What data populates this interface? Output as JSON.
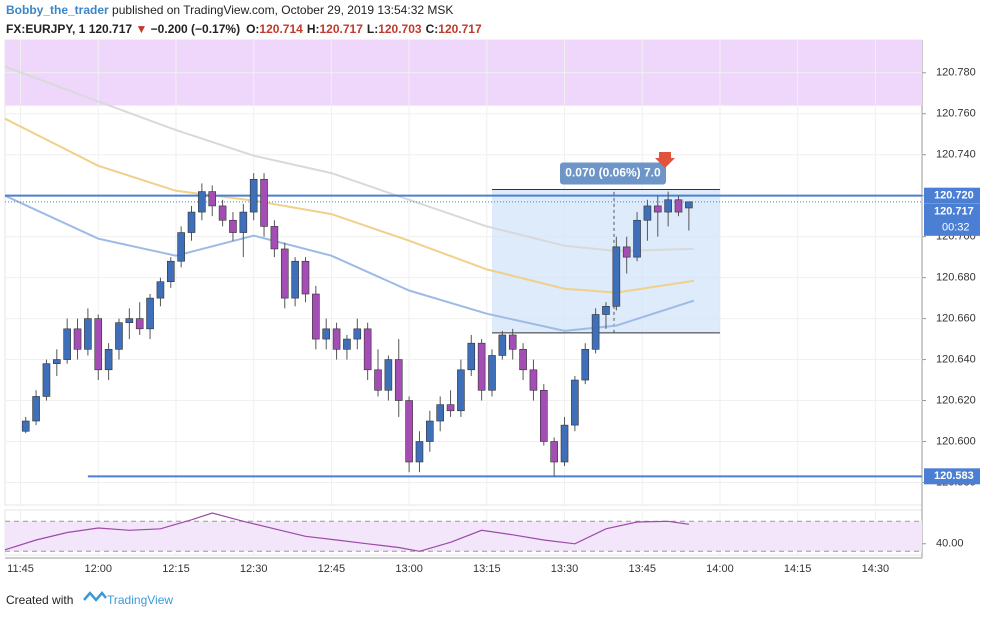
{
  "header": {
    "user": "Bobby_the_trader",
    "published": "published on TradingView.com, October 29, 2019 13:54:32 MSK",
    "symbol": "FX:EURJPY, 1",
    "last": "120.717",
    "arrow": "▼",
    "change": "−0.200 (−0.17%)",
    "ohlc": [
      {
        "key": "O:",
        "value": "120.714"
      },
      {
        "key": "H:",
        "value": "120.717"
      },
      {
        "key": "L:",
        "value": "120.703"
      },
      {
        "key": "C:",
        "value": "120.717"
      }
    ]
  },
  "footer": {
    "text": "Created with",
    "brand": "TradingView"
  },
  "chart_data": {
    "type": "candlestick",
    "xlim": [
      "11:42",
      "14:39"
    ],
    "ylim": [
      120.569,
      120.796
    ],
    "xticks": [
      "11:45",
      "12:00",
      "12:15",
      "12:30",
      "12:45",
      "13:00",
      "13:15",
      "13:30",
      "13:45",
      "14:00",
      "14:15",
      "14:30"
    ],
    "yticks": [
      {
        "value": 120.58,
        "label": "120.580"
      },
      {
        "value": 120.6,
        "label": "120.600"
      },
      {
        "value": 120.62,
        "label": "120.620"
      },
      {
        "value": 120.64,
        "label": "120.640"
      },
      {
        "value": 120.66,
        "label": "120.660"
      },
      {
        "value": 120.68,
        "label": "120.680"
      },
      {
        "value": 120.7,
        "label": "120.700"
      },
      {
        "value": 120.72,
        "label": "120.720"
      },
      {
        "value": 120.74,
        "label": "120.740"
      },
      {
        "value": 120.76,
        "label": "120.760"
      },
      {
        "value": 120.78,
        "label": "120.780"
      }
    ],
    "up_color": "#3f6fb8",
    "down_color": "#a34db5",
    "candles": [
      {
        "x": "11:46",
        "o": 120.605,
        "h": 120.612,
        "l": 120.604,
        "c": 120.61
      },
      {
        "x": "11:48",
        "o": 120.61,
        "h": 120.625,
        "l": 120.608,
        "c": 120.622
      },
      {
        "x": "11:50",
        "o": 120.622,
        "h": 120.64,
        "l": 120.62,
        "c": 120.638
      },
      {
        "x": "11:52",
        "o": 120.638,
        "h": 120.645,
        "l": 120.632,
        "c": 120.64
      },
      {
        "x": "11:54",
        "o": 120.64,
        "h": 120.66,
        "l": 120.638,
        "c": 120.655
      },
      {
        "x": "11:56",
        "o": 120.655,
        "h": 120.66,
        "l": 120.64,
        "c": 120.645
      },
      {
        "x": "11:58",
        "o": 120.645,
        "h": 120.665,
        "l": 120.642,
        "c": 120.66
      },
      {
        "x": "12:00",
        "o": 120.66,
        "h": 120.662,
        "l": 120.63,
        "c": 120.635
      },
      {
        "x": "12:02",
        "o": 120.635,
        "h": 120.648,
        "l": 120.63,
        "c": 120.645
      },
      {
        "x": "12:04",
        "o": 120.645,
        "h": 120.66,
        "l": 120.64,
        "c": 120.658
      },
      {
        "x": "12:06",
        "o": 120.658,
        "h": 120.665,
        "l": 120.65,
        "c": 120.66
      },
      {
        "x": "12:08",
        "o": 120.66,
        "h": 120.668,
        "l": 120.652,
        "c": 120.655
      },
      {
        "x": "12:10",
        "o": 120.655,
        "h": 120.672,
        "l": 120.65,
        "c": 120.67
      },
      {
        "x": "12:12",
        "o": 120.67,
        "h": 120.68,
        "l": 120.666,
        "c": 120.678
      },
      {
        "x": "12:14",
        "o": 120.678,
        "h": 120.69,
        "l": 120.675,
        "c": 120.688
      },
      {
        "x": "12:16",
        "o": 120.688,
        "h": 120.705,
        "l": 120.685,
        "c": 120.702
      },
      {
        "x": "12:18",
        "o": 120.702,
        "h": 120.715,
        "l": 120.698,
        "c": 120.712
      },
      {
        "x": "12:20",
        "o": 120.712,
        "h": 120.726,
        "l": 120.708,
        "c": 120.722
      },
      {
        "x": "12:22",
        "o": 120.722,
        "h": 120.725,
        "l": 120.71,
        "c": 120.715
      },
      {
        "x": "12:24",
        "o": 120.715,
        "h": 120.718,
        "l": 120.705,
        "c": 120.708
      },
      {
        "x": "12:26",
        "o": 120.708,
        "h": 120.712,
        "l": 120.698,
        "c": 120.702
      },
      {
        "x": "12:28",
        "o": 120.702,
        "h": 120.716,
        "l": 120.69,
        "c": 120.712
      },
      {
        "x": "12:30",
        "o": 120.712,
        "h": 120.731,
        "l": 120.708,
        "c": 120.728
      },
      {
        "x": "12:32",
        "o": 120.728,
        "h": 120.731,
        "l": 120.7,
        "c": 120.705
      },
      {
        "x": "12:34",
        "o": 120.705,
        "h": 120.708,
        "l": 120.69,
        "c": 120.694
      },
      {
        "x": "12:36",
        "o": 120.694,
        "h": 120.697,
        "l": 120.665,
        "c": 120.67
      },
      {
        "x": "12:38",
        "o": 120.67,
        "h": 120.69,
        "l": 120.666,
        "c": 120.688
      },
      {
        "x": "12:40",
        "o": 120.688,
        "h": 120.69,
        "l": 120.668,
        "c": 120.672
      },
      {
        "x": "12:42",
        "o": 120.672,
        "h": 120.676,
        "l": 120.645,
        "c": 120.65
      },
      {
        "x": "12:44",
        "o": 120.65,
        "h": 120.66,
        "l": 120.645,
        "c": 120.655
      },
      {
        "x": "12:46",
        "o": 120.655,
        "h": 120.658,
        "l": 120.64,
        "c": 120.645
      },
      {
        "x": "12:48",
        "o": 120.645,
        "h": 120.652,
        "l": 120.64,
        "c": 120.65
      },
      {
        "x": "12:50",
        "o": 120.65,
        "h": 120.66,
        "l": 120.645,
        "c": 120.655
      },
      {
        "x": "12:52",
        "o": 120.655,
        "h": 120.658,
        "l": 120.63,
        "c": 120.635
      },
      {
        "x": "12:54",
        "o": 120.635,
        "h": 120.645,
        "l": 120.622,
        "c": 120.625
      },
      {
        "x": "12:56",
        "o": 120.625,
        "h": 120.642,
        "l": 120.62,
        "c": 120.64
      },
      {
        "x": "12:58",
        "o": 120.64,
        "h": 120.65,
        "l": 120.612,
        "c": 120.62
      },
      {
        "x": "13:00",
        "o": 120.62,
        "h": 120.622,
        "l": 120.585,
        "c": 120.59
      },
      {
        "x": "13:02",
        "o": 120.59,
        "h": 120.605,
        "l": 120.585,
        "c": 120.6
      },
      {
        "x": "13:04",
        "o": 120.6,
        "h": 120.615,
        "l": 120.595,
        "c": 120.61
      },
      {
        "x": "13:06",
        "o": 120.61,
        "h": 120.622,
        "l": 120.605,
        "c": 120.618
      },
      {
        "x": "13:08",
        "o": 120.618,
        "h": 120.625,
        "l": 120.612,
        "c": 120.615
      },
      {
        "x": "13:10",
        "o": 120.615,
        "h": 120.64,
        "l": 120.612,
        "c": 120.635
      },
      {
        "x": "13:12",
        "o": 120.635,
        "h": 120.652,
        "l": 120.632,
        "c": 120.648
      },
      {
        "x": "13:14",
        "o": 120.648,
        "h": 120.65,
        "l": 120.62,
        "c": 120.625
      },
      {
        "x": "13:16",
        "o": 120.625,
        "h": 120.645,
        "l": 120.622,
        "c": 120.642
      },
      {
        "x": "13:18",
        "o": 120.642,
        "h": 120.654,
        "l": 120.64,
        "c": 120.652
      },
      {
        "x": "13:20",
        "o": 120.652,
        "h": 120.655,
        "l": 120.64,
        "c": 120.645
      },
      {
        "x": "13:22",
        "o": 120.645,
        "h": 120.648,
        "l": 120.63,
        "c": 120.635
      },
      {
        "x": "13:24",
        "o": 120.635,
        "h": 120.64,
        "l": 120.62,
        "c": 120.625
      },
      {
        "x": "13:26",
        "o": 120.625,
        "h": 120.628,
        "l": 120.598,
        "c": 120.6
      },
      {
        "x": "13:28",
        "o": 120.6,
        "h": 120.602,
        "l": 120.583,
        "c": 120.59
      },
      {
        "x": "13:30",
        "o": 120.59,
        "h": 120.612,
        "l": 120.588,
        "c": 120.608
      },
      {
        "x": "13:32",
        "o": 120.608,
        "h": 120.632,
        "l": 120.605,
        "c": 120.63
      },
      {
        "x": "13:34",
        "o": 120.63,
        "h": 120.648,
        "l": 120.628,
        "c": 120.645
      },
      {
        "x": "13:36",
        "o": 120.645,
        "h": 120.665,
        "l": 120.643,
        "c": 120.662
      },
      {
        "x": "13:38",
        "o": 120.662,
        "h": 120.668,
        "l": 120.655,
        "c": 120.666
      },
      {
        "x": "13:40",
        "o": 120.666,
        "h": 120.7,
        "l": 120.664,
        "c": 120.695
      },
      {
        "x": "13:42",
        "o": 120.695,
        "h": 120.7,
        "l": 120.682,
        "c": 120.69
      },
      {
        "x": "13:44",
        "o": 120.69,
        "h": 120.712,
        "l": 120.688,
        "c": 120.708
      },
      {
        "x": "13:46",
        "o": 120.708,
        "h": 120.718,
        "l": 120.698,
        "c": 120.715
      },
      {
        "x": "13:48",
        "o": 120.715,
        "h": 120.72,
        "l": 120.7,
        "c": 120.712
      },
      {
        "x": "13:50",
        "o": 120.712,
        "h": 120.722,
        "l": 120.705,
        "c": 120.718
      },
      {
        "x": "13:52",
        "o": 120.718,
        "h": 120.72,
        "l": 120.71,
        "c": 120.712
      },
      {
        "x": "13:54",
        "o": 120.714,
        "h": 120.717,
        "l": 120.703,
        "c": 120.717
      }
    ],
    "ma": [
      {
        "color": "#d9d9d9",
        "x": [
          "11:42",
          "12:00",
          "12:15",
          "12:30",
          "12:45",
          "13:00",
          "13:15",
          "13:30",
          "13:40",
          "13:55"
        ],
        "values": [
          120.783,
          120.766,
          120.752,
          120.7395,
          120.731,
          120.718,
          120.705,
          120.6956,
          120.693,
          120.694
        ]
      },
      {
        "color": "#f1d08a",
        "x": [
          "11:42",
          "12:00",
          "12:15",
          "12:30",
          "12:45",
          "13:00",
          "13:15",
          "13:30",
          "13:40",
          "13:55"
        ],
        "values": [
          120.7576,
          120.7346,
          120.7224,
          120.7176,
          120.711,
          120.698,
          120.684,
          120.6746,
          120.6727,
          120.6785
        ]
      },
      {
        "color": "#9dbbe6",
        "x": [
          "11:42",
          "12:00",
          "12:15",
          "12:30",
          "12:45",
          "13:00",
          "13:15",
          "13:30",
          "13:40",
          "13:55"
        ],
        "values": [
          120.72,
          120.699,
          120.6907,
          120.7005,
          120.6907,
          120.6737,
          120.6624,
          120.654,
          120.6566,
          120.6688
        ]
      }
    ],
    "zone": [
      120.764,
      120.796
    ],
    "levels": [
      {
        "value": 120.72,
        "label": "120.720",
        "start": "11:42"
      },
      {
        "value": 120.583,
        "label": "120.583",
        "start": "11:58"
      }
    ],
    "current": {
      "value": 120.717,
      "label": "120.717",
      "countdown": "00:32"
    },
    "measure": {
      "x": [
        "13:16",
        "14:00"
      ],
      "y": [
        120.653,
        120.723
      ],
      "label": "0.070 (0.06%) 7.0"
    },
    "rsi": {
      "ylim": [
        25,
        85
      ],
      "band": [
        30,
        70
      ],
      "yticks": [
        {
          "value": 40,
          "label": "40.00"
        }
      ],
      "color": "#9c4aa8",
      "x": [
        "11:42",
        "11:48",
        "11:54",
        "12:00",
        "12:06",
        "12:12",
        "12:18",
        "12:22",
        "12:28",
        "12:34",
        "12:40",
        "12:46",
        "12:52",
        "12:58",
        "13:02",
        "13:08",
        "13:14",
        "13:20",
        "13:26",
        "13:32",
        "13:38",
        "13:44",
        "13:50",
        "13:54"
      ],
      "values": [
        32,
        45,
        55,
        61,
        58,
        60,
        72,
        81,
        70,
        60,
        50,
        45,
        40,
        35,
        30,
        42,
        58,
        52,
        45,
        40,
        60,
        69,
        70,
        66
      ]
    }
  }
}
